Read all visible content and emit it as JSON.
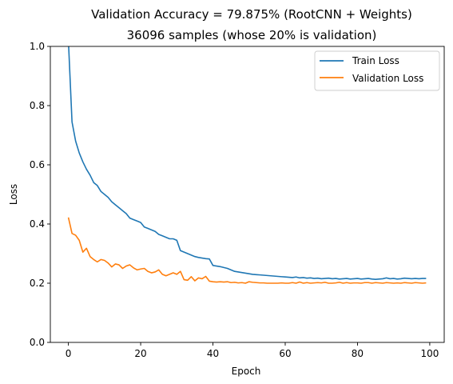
{
  "chart_data": {
    "type": "line",
    "title": "Validation Accuracy = 79.875% (RootCNN + Weights)",
    "subtitle": "36096 samples (whose 20% is validation)",
    "xlabel": "Epoch",
    "ylabel": "Loss",
    "xlim": [
      -5,
      104
    ],
    "ylim": [
      0.0,
      1.0
    ],
    "xticks": [
      0,
      20,
      40,
      60,
      80,
      100
    ],
    "yticks": [
      0.0,
      0.2,
      0.4,
      0.6,
      0.8,
      1.0
    ],
    "xtick_labels": [
      "0",
      "20",
      "40",
      "60",
      "80",
      "100"
    ],
    "ytick_labels": [
      "0.0",
      "0.2",
      "0.4",
      "0.6",
      "0.8",
      "1.0"
    ],
    "grid": false,
    "legend_position": "top-right",
    "series": [
      {
        "name": "Train Loss",
        "color": "#1f77b4",
        "values": [
          1.02,
          0.745,
          0.68,
          0.64,
          0.61,
          0.585,
          0.565,
          0.54,
          0.53,
          0.51,
          0.5,
          0.49,
          0.475,
          0.465,
          0.455,
          0.445,
          0.435,
          0.42,
          0.415,
          0.41,
          0.405,
          0.39,
          0.385,
          0.38,
          0.375,
          0.365,
          0.36,
          0.355,
          0.35,
          0.35,
          0.345,
          0.31,
          0.305,
          0.3,
          0.295,
          0.29,
          0.287,
          0.285,
          0.283,
          0.282,
          0.26,
          0.258,
          0.256,
          0.253,
          0.25,
          0.245,
          0.24,
          0.238,
          0.236,
          0.234,
          0.232,
          0.23,
          0.229,
          0.228,
          0.227,
          0.226,
          0.225,
          0.224,
          0.223,
          0.222,
          0.221,
          0.22,
          0.219,
          0.221,
          0.218,
          0.219,
          0.217,
          0.218,
          0.216,
          0.217,
          0.215,
          0.216,
          0.217,
          0.215,
          0.216,
          0.214,
          0.215,
          0.216,
          0.214,
          0.215,
          0.216,
          0.214,
          0.215,
          0.216,
          0.214,
          0.213,
          0.214,
          0.215,
          0.218,
          0.215,
          0.216,
          0.214,
          0.215,
          0.217,
          0.216,
          0.215,
          0.216,
          0.215,
          0.216,
          0.216
        ]
      },
      {
        "name": "Validation Loss",
        "color": "#ff7f0e",
        "values": [
          0.422,
          0.368,
          0.362,
          0.345,
          0.305,
          0.318,
          0.29,
          0.28,
          0.272,
          0.28,
          0.277,
          0.268,
          0.255,
          0.265,
          0.262,
          0.25,
          0.258,
          0.262,
          0.252,
          0.245,
          0.248,
          0.25,
          0.24,
          0.235,
          0.238,
          0.245,
          0.23,
          0.225,
          0.23,
          0.235,
          0.23,
          0.24,
          0.212,
          0.21,
          0.222,
          0.208,
          0.218,
          0.215,
          0.223,
          0.207,
          0.205,
          0.204,
          0.205,
          0.204,
          0.205,
          0.202,
          0.203,
          0.201,
          0.202,
          0.2,
          0.205,
          0.203,
          0.202,
          0.201,
          0.201,
          0.2,
          0.2,
          0.2,
          0.2,
          0.201,
          0.2,
          0.2,
          0.202,
          0.2,
          0.204,
          0.2,
          0.202,
          0.2,
          0.201,
          0.202,
          0.201,
          0.203,
          0.2,
          0.2,
          0.201,
          0.203,
          0.2,
          0.202,
          0.2,
          0.201,
          0.201,
          0.2,
          0.202,
          0.202,
          0.2,
          0.202,
          0.201,
          0.2,
          0.202,
          0.201,
          0.2,
          0.201,
          0.2,
          0.202,
          0.201,
          0.2,
          0.202,
          0.201,
          0.2,
          0.201
        ]
      }
    ]
  }
}
